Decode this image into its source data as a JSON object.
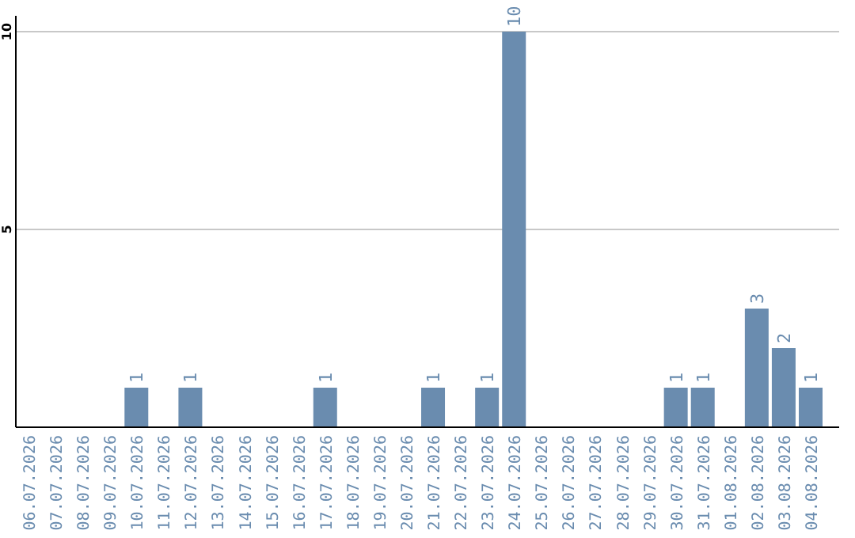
{
  "chart_data": {
    "type": "bar",
    "categories": [
      "06.07.2026",
      "07.07.2026",
      "08.07.2026",
      "09.07.2026",
      "10.07.2026",
      "11.07.2026",
      "12.07.2026",
      "13.07.2026",
      "14.07.2026",
      "15.07.2026",
      "16.07.2026",
      "17.07.2026",
      "18.07.2026",
      "19.07.2026",
      "20.07.2026",
      "21.07.2026",
      "22.07.2026",
      "23.07.2026",
      "24.07.2026",
      "25.07.2026",
      "26.07.2026",
      "27.07.2026",
      "28.07.2026",
      "29.07.2026",
      "30.07.2026",
      "31.07.2026",
      "01.08.2026",
      "02.08.2026",
      "03.08.2026",
      "04.08.2026"
    ],
    "values": [
      0,
      0,
      0,
      0,
      1,
      0,
      1,
      0,
      0,
      0,
      0,
      1,
      0,
      0,
      0,
      1,
      0,
      1,
      10,
      0,
      0,
      0,
      0,
      0,
      1,
      1,
      0,
      3,
      2,
      1
    ],
    "color": "#6a8caf",
    "ylim": [
      0,
      10.4
    ],
    "yticks": [
      5,
      10
    ],
    "grid": "y",
    "value_labels": [
      null,
      null,
      null,
      null,
      "1",
      null,
      "1",
      null,
      null,
      null,
      null,
      "1",
      null,
      null,
      null,
      "1",
      null,
      "1",
      "10",
      null,
      null,
      null,
      null,
      null,
      "1",
      "1",
      null,
      "3",
      "2",
      "1"
    ]
  }
}
